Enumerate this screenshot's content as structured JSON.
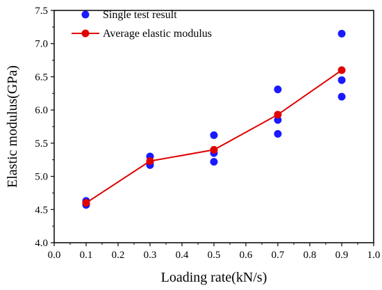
{
  "chart_data": {
    "type": "scatter",
    "xlabel": "Loading rate(kN/s)",
    "ylabel": "Elastic modulus(GPa)",
    "xlim": [
      0.0,
      1.0
    ],
    "ylim": [
      4.0,
      7.5
    ],
    "x_ticks": [
      "0.0",
      "0.1",
      "0.2",
      "0.3",
      "0.4",
      "0.5",
      "0.6",
      "0.7",
      "0.8",
      "0.9",
      "1.0"
    ],
    "y_ticks": [
      "4.0",
      "4.5",
      "5.0",
      "5.5",
      "6.0",
      "6.5",
      "7.0",
      "7.5"
    ],
    "grid": false,
    "legend_position": "top-left",
    "series": [
      {
        "name": "Single test result",
        "kind": "scatter",
        "color": "#1a1aff",
        "points": [
          [
            0.1,
            4.63
          ],
          [
            0.1,
            4.57
          ],
          [
            0.1,
            4.59
          ],
          [
            0.3,
            5.3
          ],
          [
            0.3,
            5.17
          ],
          [
            0.3,
            5.22
          ],
          [
            0.5,
            5.62
          ],
          [
            0.5,
            5.35
          ],
          [
            0.5,
            5.22
          ],
          [
            0.7,
            6.31
          ],
          [
            0.7,
            5.85
          ],
          [
            0.7,
            5.64
          ],
          [
            0.9,
            7.15
          ],
          [
            0.9,
            6.45
          ],
          [
            0.9,
            6.2
          ]
        ]
      },
      {
        "name": "Average elastic modulus",
        "kind": "line",
        "color": "#e00000",
        "points": [
          [
            0.1,
            4.6
          ],
          [
            0.3,
            5.23
          ],
          [
            0.5,
            5.4
          ],
          [
            0.7,
            5.93
          ],
          [
            0.9,
            6.6
          ]
        ]
      }
    ]
  }
}
